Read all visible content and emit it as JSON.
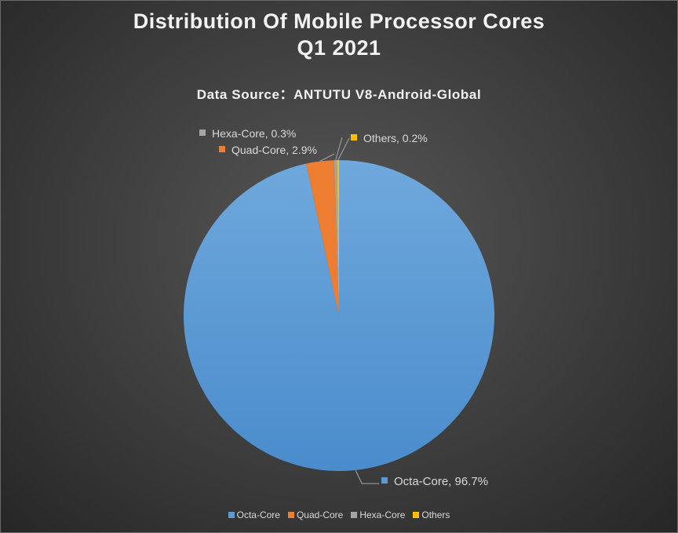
{
  "chart_data": {
    "type": "pie",
    "title_lines": [
      "Distribution Of Mobile Processor Cores",
      "Q1 2021"
    ],
    "subtitle": "Data Source：ANTUTU V8-Android-Global",
    "slices": [
      {
        "name": "Octa-Core",
        "value": 96.7,
        "label": "Octa-Core, 96.7%",
        "color": "#5b9bd5"
      },
      {
        "name": "Quad-Core",
        "value": 2.9,
        "label": "Quad-Core, 2.9%",
        "color": "#ed7d31"
      },
      {
        "name": "Hexa-Core",
        "value": 0.3,
        "label": "Hexa-Core, 0.3%",
        "color": "#a5a5a5"
      },
      {
        "name": "Others",
        "value": 0.2,
        "label": "Others, 0.2%",
        "color": "#ffc000"
      }
    ],
    "legend_position": "bottom"
  }
}
